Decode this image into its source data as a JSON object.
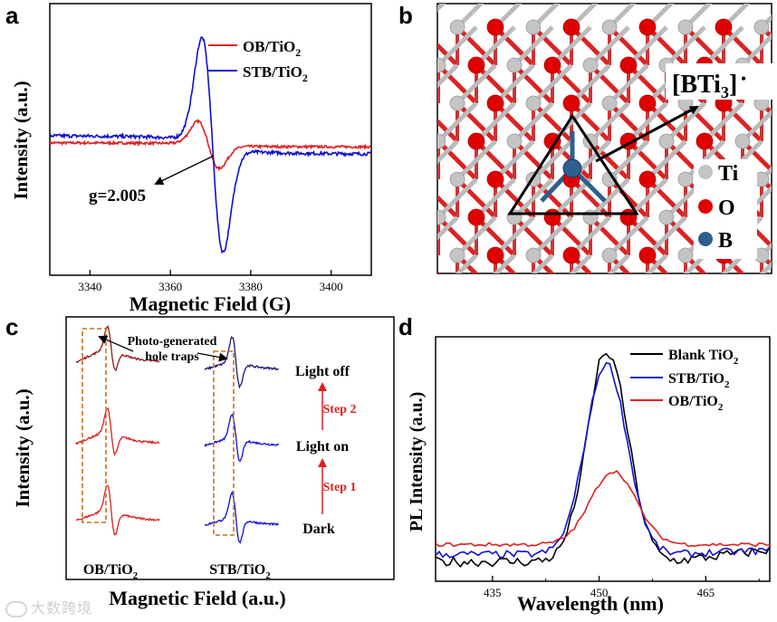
{
  "figure_labels": {
    "a": "a",
    "b": "b",
    "c": "c",
    "d": "d"
  },
  "colors": {
    "ob": "#e02020",
    "stb": "#1010d0",
    "blank": "#000000",
    "step": "#e02020",
    "dark_red": "#8b1a1a",
    "navy": "#1a1a6e",
    "box": "#c87020",
    "ti": "#c4c4c4",
    "o": "#e00000",
    "b": "#2f5f8f"
  },
  "chart_data": [
    {
      "panel": "a",
      "type": "line",
      "xlabel": "Magnetic Field (G)",
      "ylabel": "Intensity (a.u.)",
      "xlim": [
        3330,
        3410
      ],
      "xticks": [
        3340,
        3360,
        3380,
        3400
      ],
      "x_tick_labels": [
        "3340",
        "3360",
        "3380",
        "3400"
      ],
      "legend": {
        "ob": {
          "prefix": "OB/TiO",
          "sub": "2"
        },
        "stb": {
          "prefix": "STB/TiO",
          "sub": "2"
        }
      },
      "series": [
        {
          "name": "OB/TiO2",
          "key": "ob",
          "center": 3369.5,
          "amplitude": 0.22,
          "width": 2.6,
          "baseline": 0.0,
          "noise": 0.012
        },
        {
          "name": "STB/TiO2",
          "key": "stb",
          "center": 3370.5,
          "amplitude": 1.0,
          "width": 2.6,
          "baseline": 0.0,
          "noise": 0.016
        }
      ],
      "annotation": "g=2.005"
    },
    {
      "panel": "c",
      "type": "line",
      "xlabel": "Magnetic Field (a.u.)",
      "ylabel": "Intensity (a.u.)",
      "groups": [
        {
          "key": "ob",
          "label_prefix": "OB/TiO",
          "label_sub": "2"
        },
        {
          "key": "stb",
          "label_prefix": "STB/TiO",
          "label_sub": "2"
        }
      ],
      "states": [
        "Light off",
        "Light on",
        "Dark"
      ],
      "steps": [
        "Step 2",
        "Step 1"
      ],
      "annotation": {
        "line1": "Photo-generated",
        "line2": "hole traps"
      }
    },
    {
      "panel": "d",
      "type": "line",
      "xlabel": "Wavelength (nm)",
      "ylabel": "PL Intensity (a.u.)",
      "xlim": [
        427,
        474
      ],
      "xticks": [
        435,
        450,
        465
      ],
      "x_tick_labels": [
        "435",
        "450",
        "465"
      ],
      "legend": {
        "blank": {
          "prefix": "Blank TiO",
          "sub": "2"
        },
        "stb": {
          "prefix": "STB/TiO",
          "sub": "2"
        },
        "ob": {
          "prefix": "OB/TiO",
          "sub": "2"
        }
      },
      "series": [
        {
          "name": "Blank TiO2",
          "key": "blank",
          "base": 0.08,
          "slope": 0.0035,
          "peak": 0.85,
          "center": 451.2,
          "sigma": 2.9,
          "noise": 0.02
        },
        {
          "name": "STB/TiO2",
          "key": "stb",
          "base": 0.11,
          "slope": 0.0012,
          "peak": 0.78,
          "center": 451.0,
          "sigma": 2.9,
          "noise": 0.015
        },
        {
          "name": "OB/TiO2",
          "key": "ob",
          "base": 0.15,
          "slope": 0.0,
          "peak": 0.3,
          "center": 452.0,
          "sigma": 3.2,
          "noise": 0.008
        }
      ]
    }
  ],
  "structure": {
    "label": "[BTi",
    "label_sub": "3",
    "label_tail": "]",
    "label_dot": "•",
    "legend": [
      "Ti",
      "O",
      "B"
    ]
  },
  "watermark": "大数跨境"
}
